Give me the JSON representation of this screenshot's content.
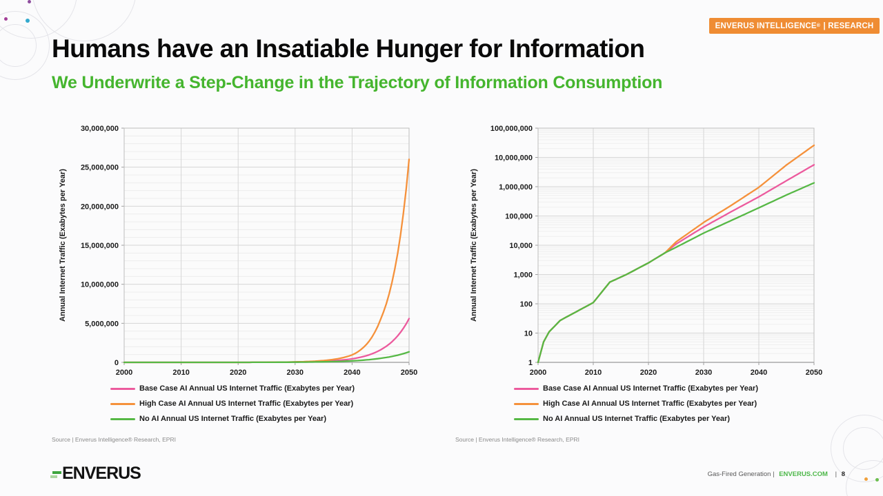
{
  "badge": {
    "text_main": "ENVERUS INTELLIGENCE",
    "reg": "®",
    "text_suffix": " | RESEARCH"
  },
  "title": "Humans have an Insatiable Hunger for Information",
  "subtitle": "We Underwrite a Step-Change in the Trajectory of Information Consumption",
  "source_left": "Source | Enverus Intelligence® Research, EPRI",
  "source_right": "Source | Enverus Intelligence® Research, EPRI",
  "footer": {
    "logo_text": "ENVERUS",
    "section": "Gas-Fired Generation",
    "separator": "|",
    "site": "ENVERUS.COM",
    "page": "8"
  },
  "colors": {
    "badge_orange": "#EF8C33",
    "subtitle_green": "#45B52E",
    "series_base_pink": "#EC5A9D",
    "series_high_orange": "#F5913B",
    "series_noai_green": "#56B845"
  },
  "chart_data": {
    "type": "line",
    "ylabel": "Annual Internet Traffic (Exabytes per Year)",
    "x_anchor_years": [
      2000,
      2001,
      2002,
      2004,
      2010,
      2013,
      2016,
      2020,
      2023,
      2025,
      2030,
      2035,
      2040,
      2045,
      2050
    ],
    "series": [
      {
        "name": "Base Case AI Annual US Internet Traffic (Exabytes per Year)",
        "color": "#EC5A9D",
        "values": [
          1,
          5,
          11,
          27,
          110,
          550,
          1000,
          2500,
          5500,
          11000,
          42000,
          140000,
          450000,
          1600000,
          5600000
        ]
      },
      {
        "name": "High Case AI Annual US Internet Traffic (Exabytes per Year)",
        "color": "#F5913B",
        "values": [
          1,
          5,
          11,
          27,
          110,
          550,
          1000,
          2500,
          5500,
          13000,
          60000,
          230000,
          950000,
          5500000,
          26000000
        ]
      },
      {
        "name": "No AI Annual US Internet Traffic (Exabytes per Year)",
        "color": "#56B845",
        "values": [
          1,
          5,
          11,
          27,
          110,
          550,
          1000,
          2500,
          5500,
          8500,
          26000,
          70000,
          190000,
          520000,
          1350000
        ]
      }
    ],
    "xticks": [
      2000,
      2010,
      2020,
      2030,
      2040,
      2050
    ],
    "xtick_labels": [
      "2000",
      "2010",
      "2020",
      "2030",
      "2040",
      "2050"
    ],
    "charts": [
      {
        "scale": "linear",
        "ymin": 0,
        "ymax": 30000000,
        "ytick_step": 5000000,
        "yminor_step": 1000000,
        "ytick_labels": [
          "0",
          "5,000,000",
          "10,000,000",
          "15,000,000",
          "20,000,000",
          "25,000,000",
          "30,000,000"
        ]
      },
      {
        "scale": "log",
        "ymin": 1,
        "ymax": 100000000,
        "ytick_labels": [
          "1",
          "10",
          "100",
          "1,000",
          "10,000",
          "100,000",
          "1,000,000",
          "10,000,000",
          "100,000,000"
        ]
      }
    ],
    "grid": true,
    "legend_position": "bottom-left"
  }
}
